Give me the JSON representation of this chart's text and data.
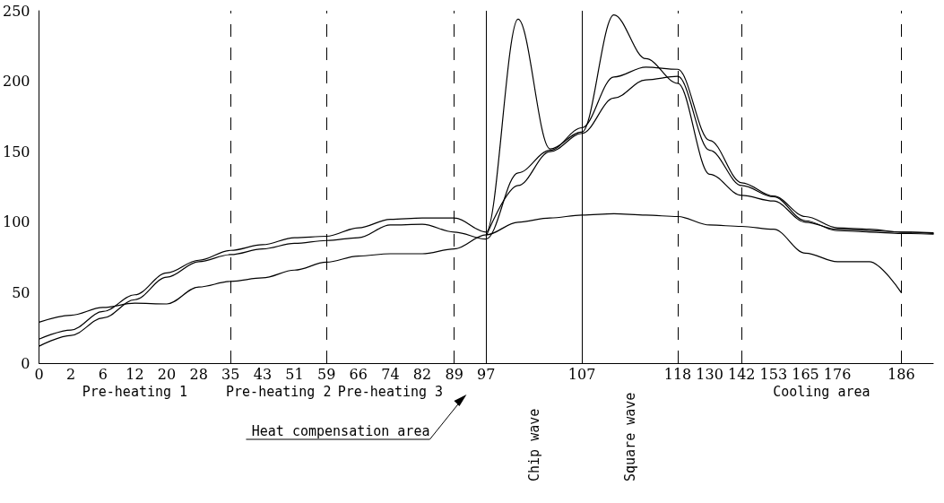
{
  "chart_data": {
    "type": "line",
    "marker": "none",
    "line_style": "solid",
    "grid": false,
    "categories": [
      "0",
      "2",
      "6",
      "12",
      "20",
      "28",
      "35",
      "43",
      "51",
      "59",
      "66",
      "74",
      "82",
      "89",
      "97",
      null,
      null,
      "107",
      null,
      null,
      "118",
      "130",
      "142",
      "153",
      "165",
      "176",
      null,
      "186",
      null
    ],
    "ylim": [
      0,
      250
    ],
    "yticks": [
      0,
      50,
      100,
      150,
      200,
      250
    ],
    "series": [
      {
        "color": "#000000",
        "values": [
          29,
          34,
          39.5,
          42.5,
          42,
          54,
          58,
          60.5,
          66,
          71.6,
          76,
          77.6,
          77.6,
          81,
          91,
          100,
          103,
          105,
          106,
          105,
          104,
          98,
          97,
          95,
          78,
          72,
          72,
          50,
          null
        ]
      },
      {
        "color": "#000000",
        "values": [
          17,
          23.5,
          36.6,
          48.5,
          64,
          73,
          80,
          84,
          89,
          90,
          96,
          102,
          103,
          103,
          93,
          244,
          152,
          164,
          247,
          216,
          198.5,
          134,
          119,
          115,
          100,
          95,
          94,
          93,
          92
        ]
      },
      {
        "color": "#000000",
        "values": [
          12,
          19.7,
          32,
          45,
          61,
          72,
          77,
          81,
          85,
          87,
          89,
          98,
          98.5,
          93,
          88,
          135,
          151,
          167,
          203,
          210,
          208.5,
          158,
          128,
          118.5,
          104,
          96,
          95,
          93,
          92.5
        ]
      },
      {
        "color": "#000000",
        "values": [
          null,
          null,
          null,
          null,
          null,
          null,
          null,
          null,
          null,
          null,
          null,
          null,
          null,
          null,
          90,
          126,
          150,
          163,
          188,
          201,
          203.5,
          151,
          126,
          118,
          101,
          94,
          93,
          92,
          91.5
        ]
      }
    ],
    "ref_lines": [
      {
        "axis": "x",
        "value": "35",
        "line_style": "dashed"
      },
      {
        "axis": "x",
        "value": "59",
        "line_style": "dashed"
      },
      {
        "axis": "x",
        "value": "89",
        "line_style": "dashed"
      },
      {
        "axis": "x",
        "value": "97",
        "line_style": "solid"
      },
      {
        "axis": "x",
        "value": "107",
        "line_style": "solid"
      },
      {
        "axis": "x",
        "value": "118",
        "line_style": "dashed"
      },
      {
        "axis": "x",
        "value": "142",
        "line_style": "dashed"
      },
      {
        "axis": "x",
        "value": "186",
        "line_style": "dashed"
      }
    ],
    "annotations": [
      "Pre-heating 1",
      "Pre-heating 2",
      "Pre-heating 3",
      "Heat compensation area",
      "Chip wave",
      "Square wave",
      "Cooling area"
    ]
  }
}
